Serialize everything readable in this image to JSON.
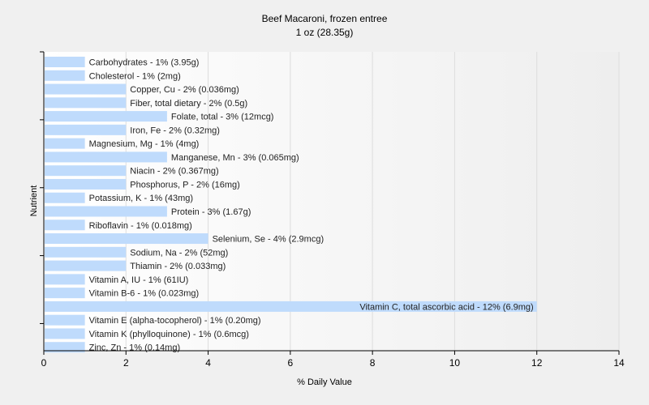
{
  "title": "Beef Macaroni, frozen entree",
  "subtitle": "1 oz (28.35g)",
  "chart_data": {
    "type": "bar",
    "orientation": "horizontal",
    "title": "Beef Macaroni, frozen entree",
    "subtitle": "1 oz (28.35g)",
    "xlabel": "% Daily Value",
    "ylabel": "Nutrient",
    "xlim": [
      0,
      14
    ],
    "xticks": [
      0,
      2,
      4,
      6,
      8,
      10,
      12,
      14
    ],
    "grid": "vertical",
    "bar_color": "#bfdbfc",
    "categories": [
      "Carbohydrates",
      "Cholesterol",
      "Copper, Cu",
      "Fiber, total dietary",
      "Folate, total",
      "Iron, Fe",
      "Magnesium, Mg",
      "Manganese, Mn",
      "Niacin",
      "Phosphorus, P",
      "Potassium, K",
      "Protein",
      "Riboflavin",
      "Selenium, Se",
      "Sodium, Na",
      "Thiamin",
      "Vitamin A, IU",
      "Vitamin B-6",
      "Vitamin C, total ascorbic acid",
      "Vitamin E (alpha-tocopherol)",
      "Vitamin K (phylloquinone)",
      "Zinc, Zn"
    ],
    "values": [
      1,
      1,
      2,
      2,
      3,
      2,
      1,
      3,
      2,
      2,
      1,
      3,
      1,
      4,
      2,
      2,
      1,
      1,
      12,
      1,
      1,
      1
    ],
    "labels": [
      "Carbohydrates - 1% (3.95g)",
      "Cholesterol - 1% (2mg)",
      "Copper, Cu - 2% (0.036mg)",
      "Fiber, total dietary - 2% (0.5g)",
      "Folate, total - 3% (12mcg)",
      "Iron, Fe - 2% (0.32mg)",
      "Magnesium, Mg - 1% (4mg)",
      "Manganese, Mn - 3% (0.065mg)",
      "Niacin - 2% (0.367mg)",
      "Phosphorus, P - 2% (16mg)",
      "Potassium, K - 1% (43mg)",
      "Protein - 3% (1.67g)",
      "Riboflavin - 1% (0.018mg)",
      "Selenium, Se - 4% (2.9mcg)",
      "Sodium, Na - 2% (52mg)",
      "Thiamin - 2% (0.033mg)",
      "Vitamin A, IU - 1% (61IU)",
      "Vitamin B-6 - 1% (0.023mg)",
      "Vitamin C, total ascorbic acid - 12% (6.9mg)",
      "Vitamin E (alpha-tocopherol) - 1% (0.20mg)",
      "Vitamin K (phylloquinone) - 1% (0.6mcg)",
      "Zinc, Zn - 1% (0.14mg)"
    ]
  }
}
